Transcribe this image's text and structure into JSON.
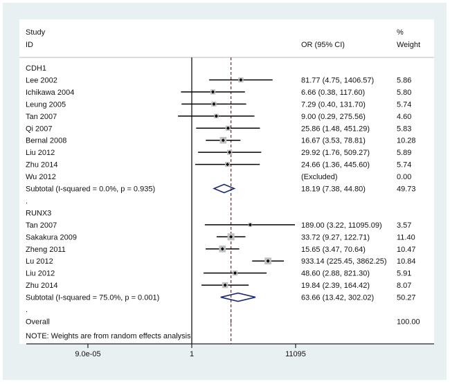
{
  "chart_data": {
    "type": "forest",
    "x_scale": "log",
    "xlim": [
      9e-05,
      11095
    ],
    "null_line": 1,
    "overall_line_or": 33.7,
    "headers": {
      "study_1": "Study",
      "study_2": "ID",
      "or": "OR (95% CI)",
      "weight_1": "%",
      "weight_2": "Weight"
    },
    "x_ticks": [
      {
        "value": 9e-05,
        "label": "9.0e-05"
      },
      {
        "value": 1,
        "label": "1"
      },
      {
        "value": 11095,
        "label": "11095"
      }
    ],
    "groups": [
      {
        "name": "CDH1",
        "studies": [
          {
            "id": "Lee 2002",
            "or": 81.77,
            "lo": 4.75,
            "hi": 1406.57,
            "or_text": "81.77 (4.75, 1406.57)",
            "weight": "5.86"
          },
          {
            "id": "Ichikawa 2004",
            "or": 6.66,
            "lo": 0.38,
            "hi": 117.6,
            "or_text": "6.66 (0.38, 117.60)",
            "weight": "5.80"
          },
          {
            "id": "Leung 2005",
            "or": 7.29,
            "lo": 0.4,
            "hi": 131.7,
            "or_text": "7.29 (0.40, 131.70)",
            "weight": "5.74"
          },
          {
            "id": "Tan 2007",
            "or": 9.0,
            "lo": 0.29,
            "hi": 275.56,
            "or_text": "9.00 (0.29, 275.56)",
            "weight": "4.60"
          },
          {
            "id": "Qi 2007",
            "or": 25.86,
            "lo": 1.48,
            "hi": 451.29,
            "or_text": "25.86 (1.48, 451.29)",
            "weight": "5.83"
          },
          {
            "id": "Bernal 2008",
            "or": 16.67,
            "lo": 3.53,
            "hi": 78.81,
            "or_text": "16.67 (3.53, 78.81)",
            "weight": "10.28"
          },
          {
            "id": "Liu 2012",
            "or": 29.92,
            "lo": 1.76,
            "hi": 509.27,
            "or_text": "29.92 (1.76, 509.27)",
            "weight": "5.89"
          },
          {
            "id": "Zhu 2014",
            "or": 24.66,
            "lo": 1.36,
            "hi": 445.6,
            "or_text": "24.66 (1.36, 445.60)",
            "weight": "5.74"
          },
          {
            "id": "Wu 2012",
            "or": null,
            "lo": null,
            "hi": null,
            "or_text": "(Excluded)",
            "weight": "0.00"
          }
        ],
        "subtotal": {
          "label": "Subtotal  (I-squared = 0.0%, p = 0.935)",
          "or": 18.19,
          "lo": 7.38,
          "hi": 44.8,
          "or_text": "18.19 (7.38, 44.80)",
          "weight": "49.73"
        },
        "spacer": "."
      },
      {
        "name": "RUNX3",
        "studies": [
          {
            "id": "Tan 2007",
            "or": 189.0,
            "lo": 3.22,
            "hi": 11095.09,
            "or_text": "189.00 (3.22, 11095.09)",
            "weight": "3.57"
          },
          {
            "id": "Sakakura 2009",
            "or": 33.72,
            "lo": 9.27,
            "hi": 122.71,
            "or_text": "33.72 (9.27, 122.71)",
            "weight": "11.40"
          },
          {
            "id": "Zheng 2011",
            "or": 15.65,
            "lo": 3.47,
            "hi": 70.64,
            "or_text": "15.65 (3.47, 70.64)",
            "weight": "10.47"
          },
          {
            "id": "Lu 2012",
            "or": 933.14,
            "lo": 225.45,
            "hi": 3862.25,
            "or_text": "933.14 (225.45, 3862.25)",
            "weight": "10.84"
          },
          {
            "id": "Liu 2012",
            "or": 48.6,
            "lo": 2.88,
            "hi": 821.3,
            "or_text": "48.60 (2.88, 821.30)",
            "weight": "5.91"
          },
          {
            "id": "Zhu 2014",
            "or": 19.84,
            "lo": 2.39,
            "hi": 164.42,
            "or_text": "19.84 (2.39, 164.42)",
            "weight": "8.07"
          }
        ],
        "subtotal": {
          "label": "Subtotal  (I-squared = 75.0%, p = 0.001)",
          "or": 63.66,
          "lo": 13.42,
          "hi": 302.02,
          "or_text": "63.66 (13.42, 302.02)",
          "weight": "50.27"
        },
        "spacer": "."
      }
    ],
    "overall": {
      "label": "Overall",
      "weight": "100.00"
    },
    "note": "NOTE: Weights are from random effects analysis",
    "colors": {
      "background": "#e8f0f2",
      "panel": "#ffffff",
      "diamond": "#1a2a6c",
      "overall_line": "#8b1a1a",
      "box": "#c0c0c0"
    }
  }
}
